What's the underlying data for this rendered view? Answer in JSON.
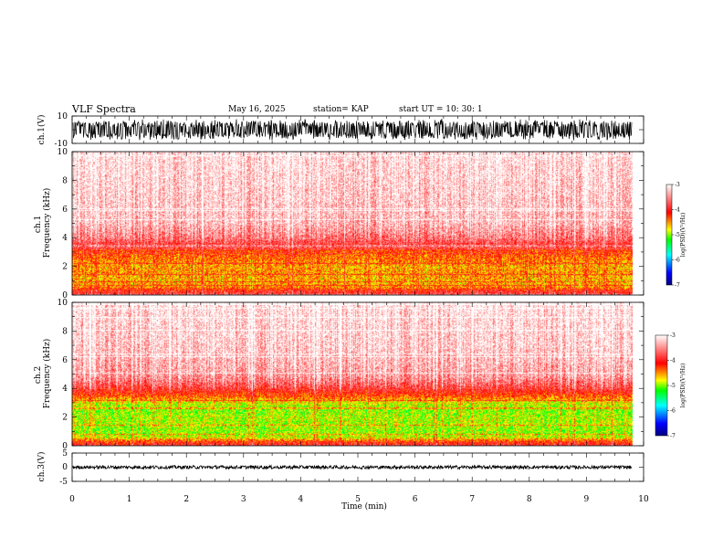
{
  "header": {
    "title": "VLF Spectra",
    "date": "May 16, 2025",
    "station": "station= KAP",
    "start": "start  UT  =    10: 30: 1"
  },
  "chart_data": [
    {
      "id": "ch1-waveform",
      "type": "line",
      "ylabel": "ch.1(V)",
      "ylim": [
        -10,
        10
      ],
      "ytick_labels": [
        "10",
        "-10"
      ],
      "xlim": [
        0,
        10
      ],
      "data_extent_min": [
        0,
        9.8
      ],
      "approx_amplitude_range_v": [
        -8,
        8
      ],
      "color": "#000000"
    },
    {
      "id": "ch1-spectrogram",
      "type": "heatmap",
      "ylabel": "ch.1\nFrequency  (kHz)",
      "ylim": [
        0,
        10
      ],
      "ytick_labels": [
        "0",
        "2",
        "4",
        "6",
        "8",
        "10"
      ],
      "xlim": [
        0,
        10
      ],
      "data_extent_min": [
        0,
        9.8
      ],
      "colorbar": {
        "label": "log(PSD)(V²/Hz)",
        "range": [
          -7,
          -3
        ],
        "tick_labels": [
          "-3",
          "-4",
          "-5",
          "-6",
          "-7"
        ]
      },
      "frequency_profile_khz_log_psd": [
        [
          0,
          -3.8
        ],
        [
          0.3,
          -4.0
        ],
        [
          0.6,
          -4.5
        ],
        [
          1.0,
          -4.6
        ],
        [
          1.5,
          -4.5
        ],
        [
          2.0,
          -4.55
        ],
        [
          2.5,
          -4.4
        ],
        [
          3.0,
          -4.3
        ],
        [
          3.5,
          -3.9
        ],
        [
          4.0,
          -3.6
        ],
        [
          5.0,
          -3.3
        ],
        [
          7.0,
          -3.2
        ],
        [
          10.0,
          -3.1
        ]
      ]
    },
    {
      "id": "ch2-spectrogram",
      "type": "heatmap",
      "ylabel": "ch.2\nFrequency  (kHz)",
      "ylim": [
        0,
        10
      ],
      "ytick_labels": [
        "0",
        "2",
        "4",
        "6",
        "8",
        "10"
      ],
      "xlim": [
        0,
        10
      ],
      "data_extent_min": [
        0,
        9.8
      ],
      "colorbar": {
        "label": "log(PSD)(V²/Hz)",
        "range": [
          -7,
          -3
        ],
        "tick_labels": [
          "-3",
          "-4",
          "-5",
          "-6",
          "-7"
        ]
      },
      "frequency_profile_khz_log_psd": [
        [
          0,
          -3.8
        ],
        [
          0.3,
          -4.2
        ],
        [
          0.6,
          -4.8
        ],
        [
          1.0,
          -5.0
        ],
        [
          1.5,
          -4.9
        ],
        [
          2.0,
          -4.9
        ],
        [
          2.5,
          -5.0
        ],
        [
          3.0,
          -4.8
        ],
        [
          3.5,
          -4.3
        ],
        [
          4.0,
          -3.9
        ],
        [
          4.5,
          -3.6
        ],
        [
          5.0,
          -3.4
        ],
        [
          7.0,
          -3.2
        ],
        [
          10.0,
          -3.1
        ]
      ]
    },
    {
      "id": "ch3-waveform",
      "type": "line",
      "ylabel": "ch.3(V)",
      "ylim": [
        -5,
        5
      ],
      "ytick_labels": [
        "5",
        "0",
        "-5"
      ],
      "xlim": [
        0,
        10
      ],
      "data_extent_min": [
        0,
        9.8
      ],
      "approx_amplitude_range_v": [
        -0.6,
        0.6
      ],
      "color": "#000000"
    }
  ],
  "xaxis": {
    "label": "Time  (min)",
    "range": [
      0,
      10
    ],
    "tick_labels": [
      "0",
      "1",
      "2",
      "3",
      "4",
      "5",
      "6",
      "7",
      "8",
      "9",
      "10"
    ]
  }
}
